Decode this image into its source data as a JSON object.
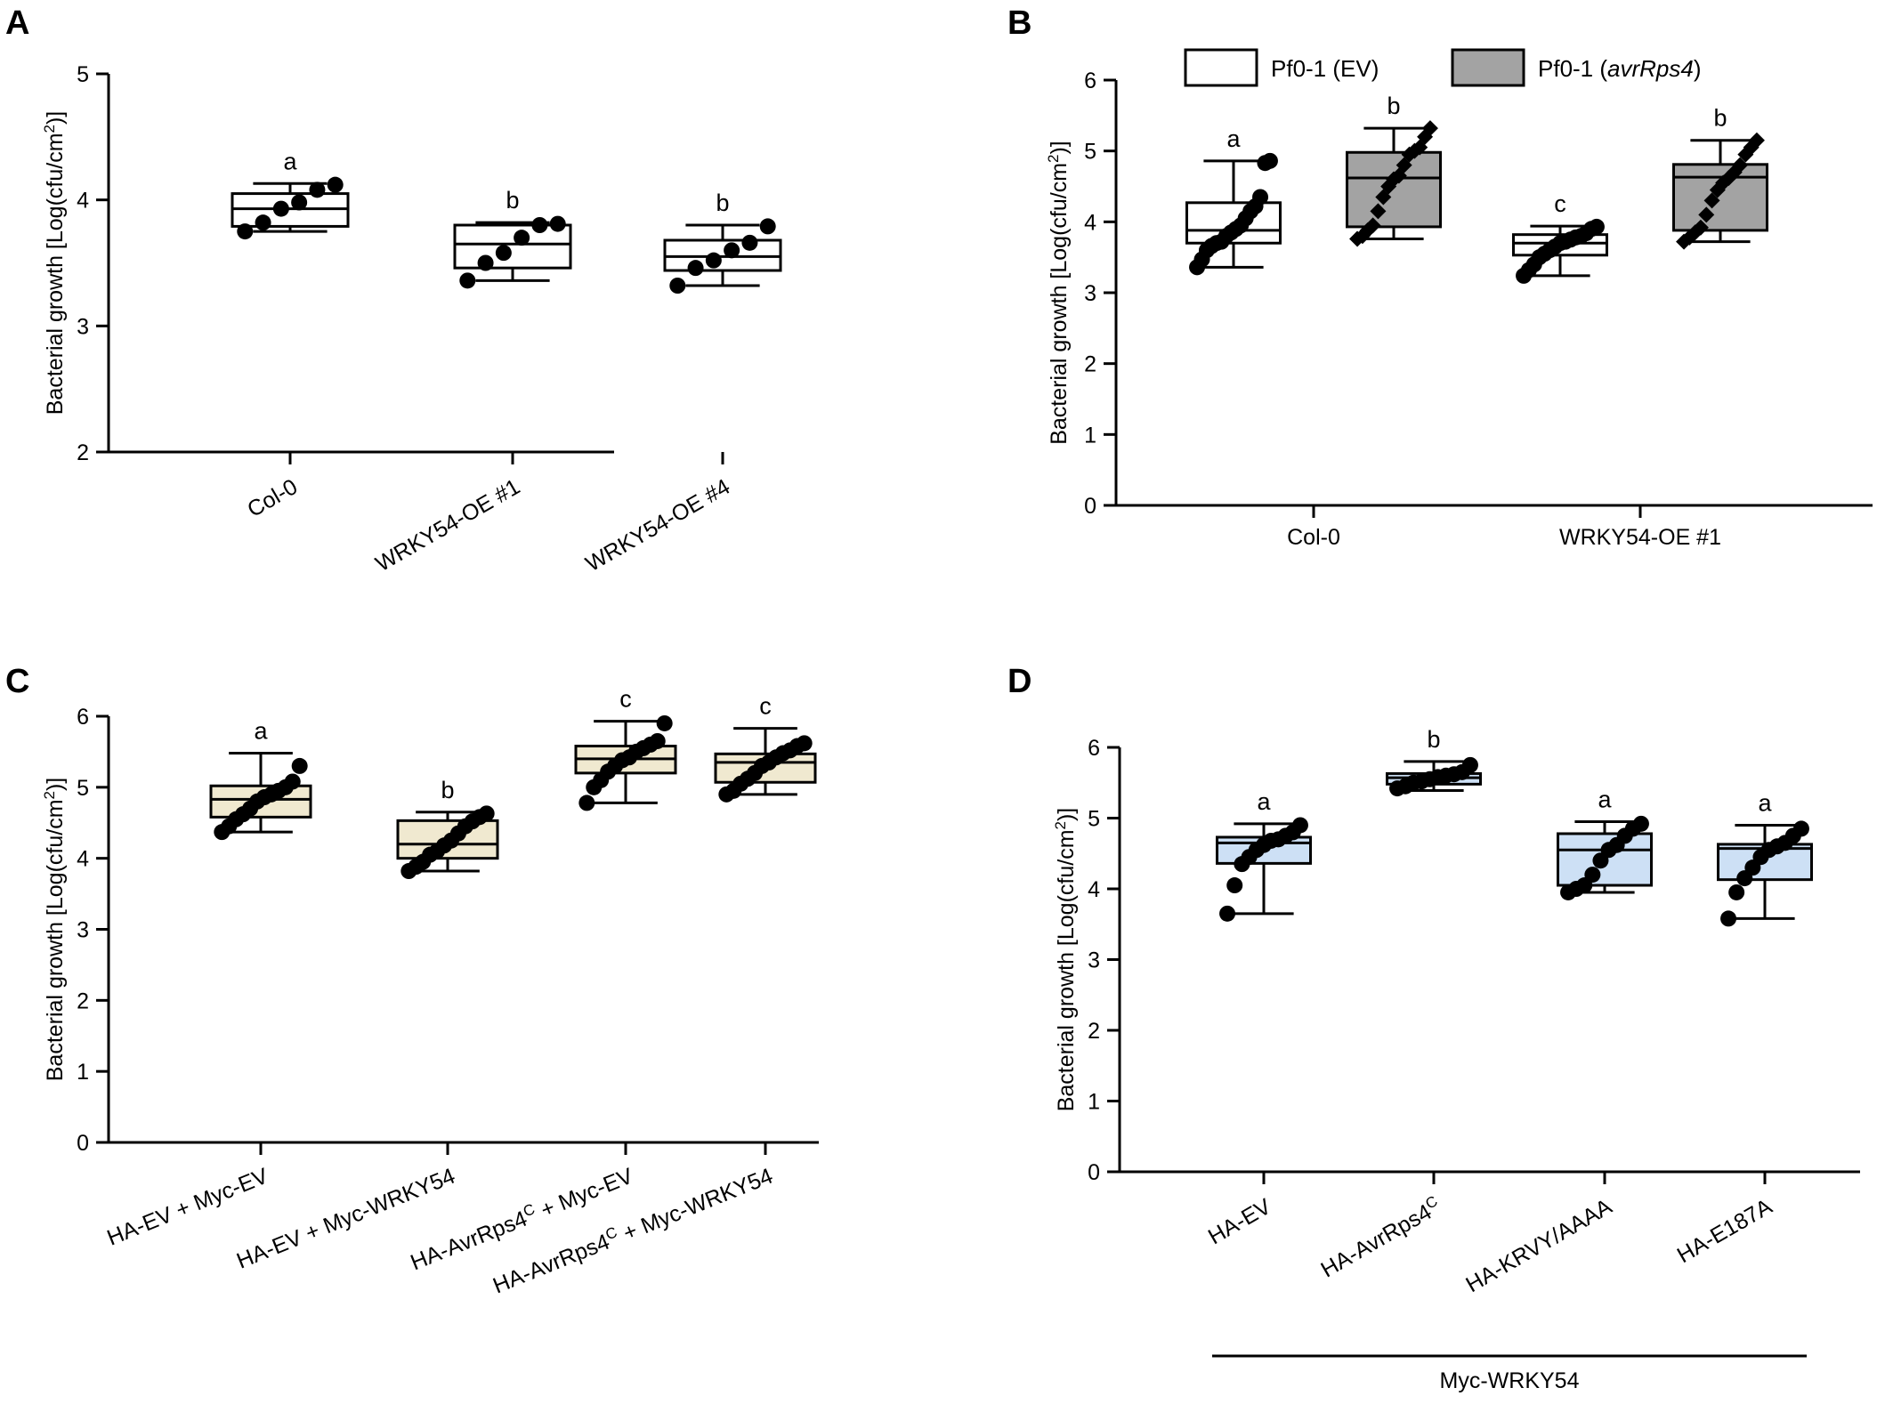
{
  "chart_data": [
    {
      "panel": "A",
      "type": "box",
      "ylabel": "Bacterial growth [Log(cfu/cm2)]",
      "ylim": [
        2,
        5
      ],
      "yticks": [
        2,
        3,
        4,
        5
      ],
      "categories": [
        "Col-0",
        "WRKY54-OE #1",
        "WRKY54-OE #4"
      ],
      "boxes": [
        {
          "min": 3.75,
          "q1": 3.79,
          "median": 3.93,
          "q3": 4.05,
          "max": 4.13,
          "letter": "a",
          "points": [
            3.75,
            3.82,
            3.93,
            3.98,
            4.08,
            4.12
          ]
        },
        {
          "min": 3.36,
          "q1": 3.46,
          "median": 3.65,
          "q3": 3.8,
          "max": 3.82,
          "letter": "b",
          "points": [
            3.36,
            3.5,
            3.58,
            3.7,
            3.8,
            3.81
          ]
        },
        {
          "min": 3.32,
          "q1": 3.44,
          "median": 3.55,
          "q3": 3.68,
          "max": 3.8,
          "letter": "b",
          "points": [
            3.32,
            3.46,
            3.52,
            3.6,
            3.66,
            3.79
          ]
        }
      ]
    },
    {
      "panel": "B",
      "type": "box",
      "ylabel": "Bacterial growth [Log(cfu/cm2)]",
      "ylim": [
        0,
        6
      ],
      "yticks": [
        0,
        1,
        2,
        3,
        4,
        5,
        6
      ],
      "categories": [
        "Col-0",
        "WRKY54-OE #1"
      ],
      "legend": [
        "Pf0-1 (EV)",
        "Pf0-1 (avrRps4)"
      ],
      "series": [
        {
          "name": "Pf0-1 (EV)",
          "fill": "#ffffff",
          "marker": "circle",
          "boxes": [
            {
              "min": 3.36,
              "q1": 3.7,
              "median": 3.88,
              "q3": 4.27,
              "max": 4.86,
              "letter": "a",
              "points": [
                3.36,
                3.47,
                3.6,
                3.66,
                3.7,
                3.72,
                3.8,
                3.85,
                3.9,
                3.95,
                4.05,
                4.15,
                4.22,
                4.35,
                4.83,
                4.86
              ]
            },
            {
              "min": 3.24,
              "q1": 3.53,
              "median": 3.7,
              "q3": 3.82,
              "max": 3.94,
              "letter": "c",
              "points": [
                3.24,
                3.32,
                3.4,
                3.5,
                3.55,
                3.6,
                3.65,
                3.7,
                3.72,
                3.75,
                3.78,
                3.8,
                3.84,
                3.9,
                3.93
              ]
            }
          ]
        },
        {
          "name": "Pf0-1 (avrRps4)",
          "fill": "#a3a3a3",
          "marker": "diamond",
          "boxes": [
            {
              "min": 3.76,
              "q1": 3.93,
              "median": 4.62,
              "q3": 4.98,
              "max": 5.32,
              "letter": "b",
              "points": [
                3.76,
                3.8,
                3.88,
                3.95,
                4.15,
                4.35,
                4.5,
                4.6,
                4.65,
                4.8,
                4.95,
                5.0,
                5.05,
                5.2,
                5.32
              ]
            },
            {
              "min": 3.72,
              "q1": 3.88,
              "median": 4.63,
              "q3": 4.81,
              "max": 5.15,
              "letter": "b",
              "points": [
                3.72,
                3.78,
                3.85,
                3.92,
                4.1,
                4.3,
                4.45,
                4.55,
                4.62,
                4.7,
                4.8,
                4.95,
                5.05,
                5.15
              ]
            }
          ]
        }
      ]
    },
    {
      "panel": "C",
      "type": "box",
      "ylabel": "Bacterial growth [Log(cfu/cm2)]",
      "ylim": [
        0,
        6
      ],
      "yticks": [
        0,
        1,
        2,
        3,
        4,
        5,
        6
      ],
      "box_fill": "#f0e9d0",
      "categories": [
        "HA-EV + Myc-EV",
        "HA-EV + Myc-WRKY54",
        "HA-AvrRps4C + Myc-EV",
        "HA-AvrRps4C + Myc-WRKY54"
      ],
      "boxes": [
        {
          "min": 4.37,
          "q1": 4.58,
          "median": 4.83,
          "q3": 5.02,
          "max": 5.48,
          "letter": "a",
          "points": [
            4.37,
            4.45,
            4.55,
            4.62,
            4.7,
            4.8,
            4.86,
            4.9,
            4.95,
            5.0,
            5.08,
            5.3
          ]
        },
        {
          "min": 3.82,
          "q1": 4.0,
          "median": 4.2,
          "q3": 4.53,
          "max": 4.65,
          "letter": "b",
          "points": [
            3.82,
            3.88,
            3.95,
            4.05,
            4.1,
            4.18,
            4.25,
            4.35,
            4.45,
            4.52,
            4.58,
            4.63
          ]
        },
        {
          "min": 4.78,
          "q1": 5.2,
          "median": 5.4,
          "q3": 5.58,
          "max": 5.93,
          "letter": "c",
          "points": [
            4.78,
            5.0,
            5.1,
            5.22,
            5.3,
            5.38,
            5.42,
            5.5,
            5.55,
            5.6,
            5.65,
            5.9
          ]
        },
        {
          "min": 4.9,
          "q1": 5.07,
          "median": 5.35,
          "q3": 5.47,
          "max": 5.83,
          "letter": "c",
          "points": [
            4.9,
            4.95,
            5.05,
            5.12,
            5.2,
            5.3,
            5.35,
            5.42,
            5.48,
            5.52,
            5.58,
            5.62
          ]
        }
      ]
    },
    {
      "panel": "D",
      "type": "box",
      "ylabel": "Bacterial growth [Log(cfu/cm2)]",
      "ylim": [
        0,
        6
      ],
      "yticks": [
        0,
        1,
        2,
        3,
        4,
        5,
        6
      ],
      "box_fill": "#cde0f5",
      "categories": [
        "HA-EV",
        "HA-AvrRps4C",
        "HA-KRVY/AAAA",
        "HA-E187A"
      ],
      "group_label": "Myc-WRKY54",
      "boxes": [
        {
          "min": 3.65,
          "q1": 4.36,
          "median": 4.65,
          "q3": 4.73,
          "max": 4.92,
          "letter": "a",
          "points": [
            3.65,
            4.05,
            4.35,
            4.45,
            4.55,
            4.62,
            4.68,
            4.7,
            4.75,
            4.8,
            4.9
          ]
        },
        {
          "min": 5.39,
          "q1": 5.48,
          "median": 5.57,
          "q3": 5.63,
          "max": 5.8,
          "letter": "b",
          "points": [
            5.42,
            5.45,
            5.5,
            5.52,
            5.55,
            5.58,
            5.6,
            5.62,
            5.65,
            5.75
          ]
        },
        {
          "min": 3.95,
          "q1": 4.05,
          "median": 4.55,
          "q3": 4.78,
          "max": 4.95,
          "letter": "a",
          "points": [
            3.95,
            4.0,
            4.05,
            4.2,
            4.4,
            4.55,
            4.62,
            4.75,
            4.85,
            4.92
          ]
        },
        {
          "min": 3.58,
          "q1": 4.13,
          "median": 4.57,
          "q3": 4.63,
          "max": 4.9,
          "letter": "a",
          "points": [
            3.58,
            3.95,
            4.15,
            4.3,
            4.45,
            4.55,
            4.6,
            4.65,
            4.75,
            4.85
          ]
        }
      ]
    }
  ],
  "labels": {
    "panelA": "A",
    "panelB": "B",
    "panelC": "C",
    "panelD": "D",
    "ylabel_main": "Bacterial growth [Log(cfu/cm",
    "ylabel_sup": "2",
    "ylabel_end": ")]",
    "legend_ev": "Pf0-1 (EV)",
    "legend_avr_prefix": "Pf0-1 (",
    "legend_avr_italic": "avrRps4",
    "legend_avr_suffix": ")",
    "superscript_c": "C"
  }
}
